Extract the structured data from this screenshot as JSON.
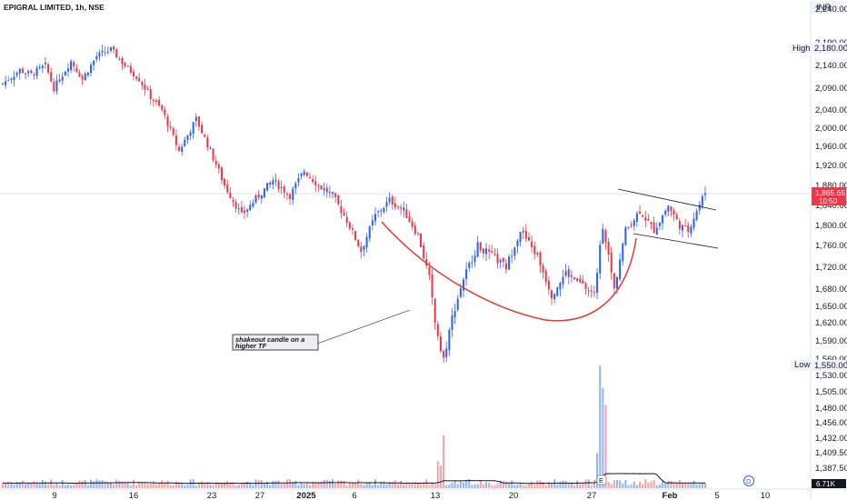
{
  "header": {
    "title": "EPIGRAL LIMITED, 1h, NSE",
    "currency": "INR"
  },
  "colors": {
    "up": "#2962ff",
    "down": "#f23645",
    "vol_up": "#90b4f8",
    "vol_down": "#f6a3a8",
    "price_tag": "#f23645",
    "curve": "#e53935",
    "label_bg": "#eeeeee"
  },
  "price_axis": {
    "ticks": [
      "2,240.00",
      "2,190.00",
      "2,140.00",
      "2,090.00",
      "2,040.00",
      "2,000.00",
      "1,960.00",
      "1,920.00",
      "1,880.00",
      "1,840.00",
      "1,800.00",
      "1,760.00",
      "1,720.00",
      "1,680.00",
      "1,650.00",
      "1,620.00",
      "1,590.00",
      "1,560.00",
      "1,530.00",
      "1,505.00",
      "1,480.00",
      "1,456.00",
      "1,432.00",
      "1,409.50",
      "1,387.50"
    ],
    "high_label": "High",
    "high_value": "2,180.00",
    "low_label": "Low",
    "low_value": "1,550.00",
    "last_price": "1,865.65",
    "countdown": "10:50",
    "volume_value": "6.71K"
  },
  "time_axis": {
    "labels": [
      "9",
      "16",
      "23",
      "27",
      "2025",
      "6",
      "13",
      "20",
      "27",
      "Feb",
      "5",
      "10"
    ]
  },
  "annotation": {
    "text_line1": "shakeout candle on a",
    "text_line2": "higher TF"
  },
  "badges": {
    "earnings": "E",
    "dividend": "D"
  },
  "chart_data": {
    "type": "candlestick",
    "title": "EPIGRAL LIMITED, 1h, NSE",
    "y_unit": "INR",
    "x_ticks": [
      "9",
      "16",
      "23",
      "27",
      "2025",
      "6",
      "13",
      "20",
      "27",
      "Feb",
      "5",
      "10"
    ],
    "y_range": [
      1370,
      2260
    ],
    "session_high": 2180,
    "session_low": 1550,
    "last_price": 1865.65,
    "last_volume": "6.71K",
    "close_path": [
      {
        "bar": 0,
        "close": 2100
      },
      {
        "bar": 6,
        "close": 2130
      },
      {
        "bar": 10,
        "close": 2120
      },
      {
        "bar": 15,
        "close": 2140
      },
      {
        "bar": 18,
        "close": 2090
      },
      {
        "bar": 24,
        "close": 2150
      },
      {
        "bar": 28,
        "close": 2110
      },
      {
        "bar": 33,
        "close": 2160
      },
      {
        "bar": 38,
        "close": 2175
      },
      {
        "bar": 43,
        "close": 2140
      },
      {
        "bar": 48,
        "close": 2110
      },
      {
        "bar": 52,
        "close": 2070
      },
      {
        "bar": 56,
        "close": 2040
      },
      {
        "bar": 62,
        "close": 1950
      },
      {
        "bar": 68,
        "close": 2020
      },
      {
        "bar": 73,
        "close": 1950
      },
      {
        "bar": 78,
        "close": 1880
      },
      {
        "bar": 84,
        "close": 1820
      },
      {
        "bar": 90,
        "close": 1860
      },
      {
        "bar": 95,
        "close": 1890
      },
      {
        "bar": 101,
        "close": 1860
      },
      {
        "bar": 106,
        "close": 1910
      },
      {
        "bar": 111,
        "close": 1880
      },
      {
        "bar": 116,
        "close": 1860
      },
      {
        "bar": 121,
        "close": 1810
      },
      {
        "bar": 126,
        "close": 1750
      },
      {
        "bar": 131,
        "close": 1820
      },
      {
        "bar": 136,
        "close": 1850
      },
      {
        "bar": 141,
        "close": 1830
      },
      {
        "bar": 146,
        "close": 1780
      },
      {
        "bar": 150,
        "close": 1700
      },
      {
        "bar": 152,
        "close": 1620
      },
      {
        "bar": 155,
        "close": 1560
      },
      {
        "bar": 158,
        "close": 1630
      },
      {
        "bar": 162,
        "close": 1700
      },
      {
        "bar": 167,
        "close": 1760
      },
      {
        "bar": 172,
        "close": 1740
      },
      {
        "bar": 177,
        "close": 1720
      },
      {
        "bar": 182,
        "close": 1790
      },
      {
        "bar": 188,
        "close": 1740
      },
      {
        "bar": 193,
        "close": 1670
      },
      {
        "bar": 198,
        "close": 1710
      },
      {
        "bar": 203,
        "close": 1690
      },
      {
        "bar": 208,
        "close": 1670
      },
      {
        "bar": 211,
        "close": 1800
      },
      {
        "bar": 215,
        "close": 1680
      },
      {
        "bar": 219,
        "close": 1790
      },
      {
        "bar": 224,
        "close": 1830
      },
      {
        "bar": 229,
        "close": 1790
      },
      {
        "bar": 234,
        "close": 1840
      },
      {
        "bar": 238,
        "close": 1800
      },
      {
        "bar": 241,
        "close": 1790
      },
      {
        "bar": 244,
        "close": 1830
      },
      {
        "bar": 247,
        "close": 1866
      }
    ],
    "bars_total": 248
  }
}
